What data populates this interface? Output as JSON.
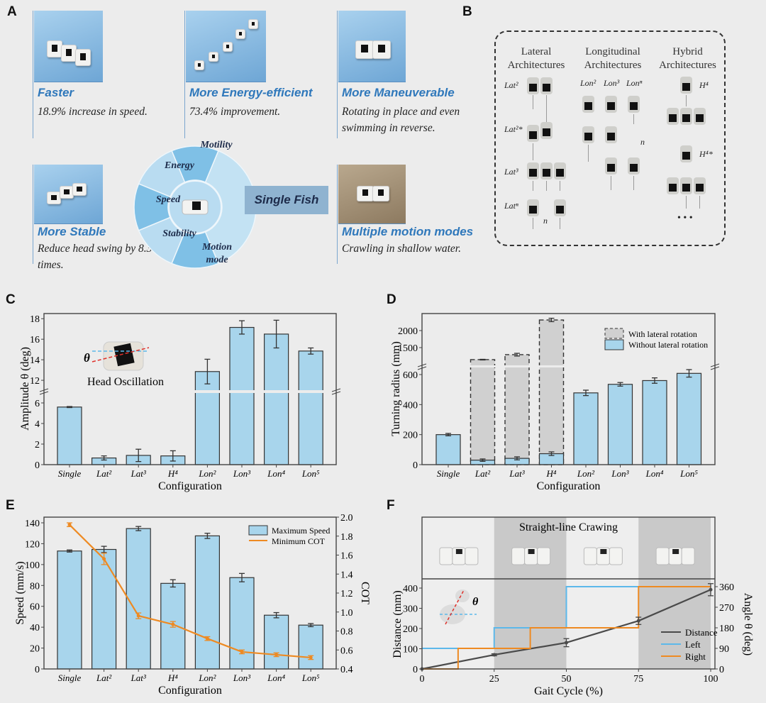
{
  "panels": {
    "A": "A",
    "B": "B",
    "C": "C",
    "D": "D",
    "E": "E",
    "F": "F"
  },
  "panel_a": {
    "cards": [
      {
        "title": "Faster",
        "desc": "18.9% increase in speed."
      },
      {
        "title": "More Energy-efficient",
        "desc": "73.4% improvement."
      },
      {
        "title": "More Maneuverable",
        "desc": "Rotating in place and even swimming in reverse."
      },
      {
        "title": "More Stable",
        "desc": "Reduce head swing by 8.3 times."
      },
      {
        "title": "Multiple motion modes",
        "desc": "Crawling in shallow water."
      }
    ],
    "wheel": {
      "sectors": [
        "Motility",
        "Energy",
        "Speed",
        "Stability",
        "Motion mode"
      ],
      "center_label": "Single Fish",
      "colors": {
        "dark": "#7fc0e6",
        "light": "#b9dcf1",
        "label_box": "#8fb3d0",
        "label_text": "#1d2b4a"
      }
    },
    "title_color": "#2f78bb"
  },
  "panel_b": {
    "columns": [
      {
        "title": "Lateral Architectures",
        "labels": [
          "Lat²",
          "Lat²*",
          "Lat³",
          "Latⁿ"
        ],
        "n": "n"
      },
      {
        "title": "Longitudinal Architectures",
        "labels": [
          "Lon²",
          "Lon³",
          "Lonⁿ"
        ],
        "n": "n"
      },
      {
        "title": "Hybrid Architectures",
        "labels": [
          "H⁴",
          "H⁴*"
        ],
        "more": "• • •"
      }
    ]
  },
  "chart_data": [
    {
      "id": "C",
      "type": "bar",
      "xlabel": "Configuration",
      "ylabel": "Amplitude θ (deg)",
      "categories": [
        "Single",
        "Lat²",
        "Lat³",
        "H⁴",
        "Lon²",
        "Lon³",
        "Lon⁴",
        "Lon⁵"
      ],
      "values": [
        5.6,
        0.65,
        0.9,
        0.85,
        12.85,
        17.15,
        16.5,
        14.85
      ],
      "errors": [
        0.05,
        0.2,
        0.6,
        0.5,
        1.2,
        0.65,
        1.35,
        0.3
      ],
      "yticks": [
        0,
        2,
        4,
        6,
        12,
        14,
        16,
        18
      ],
      "axis_break": [
        7,
        11
      ],
      "ylim": [
        0,
        18.5
      ],
      "annotation": "Head Oscillation",
      "theta": "θ",
      "bar_color": "#a8d5ec"
    },
    {
      "id": "D",
      "type": "bar",
      "xlabel": "Configuration",
      "ylabel": "Turning radius (mm)",
      "categories": [
        "Single",
        "Lat²",
        "Lat³",
        "H⁴",
        "Lon²",
        "Lon³",
        "Lon⁴",
        "Lon⁵"
      ],
      "series": [
        {
          "name": "Without lateral rotation",
          "values": [
            200,
            30,
            42,
            73,
            478,
            535,
            560,
            608
          ],
          "errors": [
            8,
            8,
            10,
            12,
            18,
            12,
            18,
            25
          ],
          "color": "#a8d5ec"
        },
        {
          "name": "With lateral rotation",
          "values": [
            null,
            1146,
            1292,
            2312,
            null,
            null,
            null,
            null
          ],
          "errors": [
            null,
            10,
            40,
            50,
            null,
            null,
            null,
            null
          ],
          "color": "#d0d0d0"
        }
      ],
      "yticks": [
        0,
        200,
        400,
        600,
        1500,
        2000
      ],
      "axis_break": [
        650,
        940
      ],
      "ylim": [
        0,
        2500
      ],
      "legend": "top-right"
    },
    {
      "id": "E",
      "type": "bar+line",
      "xlabel": "Configuration",
      "ylabel": "Speed (mm/s)",
      "y2label": "COT",
      "categories": [
        "Single",
        "Lat²",
        "Lat³",
        "H⁴",
        "Lon²",
        "Lon³",
        "Lon⁴",
        "Lon⁵"
      ],
      "series": [
        {
          "name": "Maximum Speed",
          "type": "bar",
          "values": [
            113,
            114.5,
            134.5,
            82,
            127.5,
            87.5,
            51.5,
            42
          ],
          "errors": [
            1,
            3,
            2,
            3.5,
            2.5,
            4,
            2.5,
            1.5
          ],
          "color": "#a8d5ec"
        },
        {
          "name": "Minimum COT",
          "type": "line",
          "axis": "right",
          "values": [
            1.92,
            1.56,
            0.96,
            0.87,
            0.72,
            0.58,
            0.55,
            0.52
          ],
          "errors": [
            0.02,
            0.06,
            0.03,
            0.03,
            0.02,
            0.02,
            0.02,
            0.02
          ],
          "color": "#ee8a22"
        }
      ],
      "yticks": [
        0,
        20,
        40,
        60,
        80,
        100,
        120,
        140
      ],
      "ylim": [
        0,
        145
      ],
      "y2ticks": [
        0.4,
        0.6,
        0.8,
        1.0,
        1.2,
        1.4,
        1.6,
        1.8,
        2.0
      ],
      "y2lim": [
        0.4,
        2.0
      ],
      "legend": "top-right"
    },
    {
      "id": "F",
      "type": "line",
      "title": "Straight-line Crawing",
      "xlabel": "Gait Cycle (%)",
      "ylabel": "Distance (mm)",
      "y2label": "Angle θ (deg)",
      "xticks": [
        0,
        25,
        50,
        75,
        100
      ],
      "xlim": [
        0,
        100
      ],
      "yticks": [
        0,
        100,
        200,
        300,
        400
      ],
      "ylim": [
        0,
        450
      ],
      "y2ticks": [
        0,
        90,
        180,
        270,
        360
      ],
      "y2lim": [
        0,
        405
      ],
      "shaded_x": [
        [
          25,
          50
        ],
        [
          75,
          100
        ]
      ],
      "theta": "θ",
      "series": [
        {
          "name": "Distance",
          "axis": "left",
          "x": [
            0,
            25,
            50,
            75,
            100
          ],
          "y": [
            0,
            70,
            130,
            238,
            392
          ],
          "errors": [
            0,
            5,
            20,
            18,
            30
          ],
          "color": "#4a4a4a"
        },
        {
          "name": "Left",
          "axis": "right",
          "step": true,
          "x": [
            0,
            25,
            50,
            75,
            100
          ],
          "y": [
            90,
            180,
            360,
            360,
            360
          ],
          "color": "#5cb8ea"
        },
        {
          "name": "Right",
          "axis": "right",
          "step": true,
          "x": [
            0,
            12.5,
            37.5,
            75,
            100
          ],
          "y": [
            0,
            90,
            180,
            360,
            360
          ],
          "color": "#ee8a22"
        }
      ],
      "legend": "bottom-right"
    }
  ]
}
